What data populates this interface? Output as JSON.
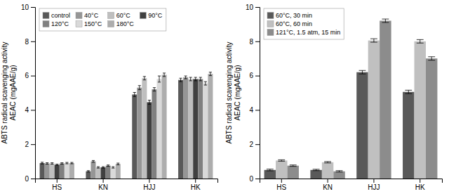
{
  "chart_data": [
    {
      "type": "bar",
      "categories": [
        "HS",
        "KN",
        "HJJ",
        "HK"
      ],
      "series": [
        {
          "name": "control",
          "color": "#595959",
          "values": [
            0.9,
            0.42,
            4.9,
            5.75
          ],
          "errors": [
            0.05,
            0.04,
            0.12,
            0.1
          ]
        },
        {
          "name": "40°C",
          "color": "#969696",
          "values": [
            0.88,
            1.0,
            5.3,
            5.9
          ],
          "errors": [
            0.04,
            0.05,
            0.12,
            0.08
          ]
        },
        {
          "name": "60°C",
          "color": "#bfbfbf",
          "values": [
            0.88,
            0.65,
            5.85,
            5.8
          ],
          "errors": [
            0.04,
            0.04,
            0.1,
            0.1
          ]
        },
        {
          "name": "90°C",
          "color": "#404040",
          "values": [
            0.8,
            0.65,
            4.45,
            5.8
          ],
          "errors": [
            0.04,
            0.04,
            0.12,
            0.1
          ]
        },
        {
          "name": "120°C",
          "color": "#808080",
          "values": [
            0.88,
            0.75,
            5.2,
            5.8
          ],
          "errors": [
            0.04,
            0.04,
            0.1,
            0.1
          ]
        },
        {
          "name": "150°C",
          "color": "#d9d9d9",
          "values": [
            0.9,
            0.65,
            5.8,
            5.55
          ],
          "errors": [
            0.04,
            0.04,
            0.18,
            0.1
          ]
        },
        {
          "name": "180°C",
          "color": "#adadad",
          "values": [
            0.9,
            0.85,
            6.05,
            6.1
          ],
          "errors": [
            0.04,
            0.05,
            0.1,
            0.1
          ]
        }
      ],
      "ylim": [
        0,
        10
      ],
      "yticks": [
        0,
        2,
        4,
        6,
        8,
        10
      ],
      "ylabel": "ABTS radical scavenging activity\nAEAC (mgAAE/g)",
      "legend": "upper left"
    },
    {
      "type": "bar",
      "categories": [
        "HS",
        "KN",
        "HJJ",
        "HK"
      ],
      "series": [
        {
          "name": "60°C, 30 min",
          "color": "#595959",
          "values": [
            0.5,
            0.5,
            6.2,
            5.05
          ],
          "errors": [
            0.05,
            0.04,
            0.1,
            0.1
          ]
        },
        {
          "name": "60°C, 60 min",
          "color": "#c0c0c0",
          "values": [
            1.05,
            0.95,
            8.05,
            8.0
          ],
          "errors": [
            0.04,
            0.04,
            0.1,
            0.1
          ]
        },
        {
          "name": "121°C, 1.5 atm, 15 min",
          "color": "#8c8c8c",
          "values": [
            0.75,
            0.42,
            9.2,
            7.0
          ],
          "errors": [
            0.04,
            0.04,
            0.1,
            0.1
          ]
        }
      ],
      "ylim": [
        0,
        10
      ],
      "yticks": [
        0,
        2,
        4,
        6,
        8,
        10
      ],
      "ylabel": "ABTS radical scavenging activity\nAEAC (mgAAE/g)",
      "legend": "upper left"
    }
  ]
}
